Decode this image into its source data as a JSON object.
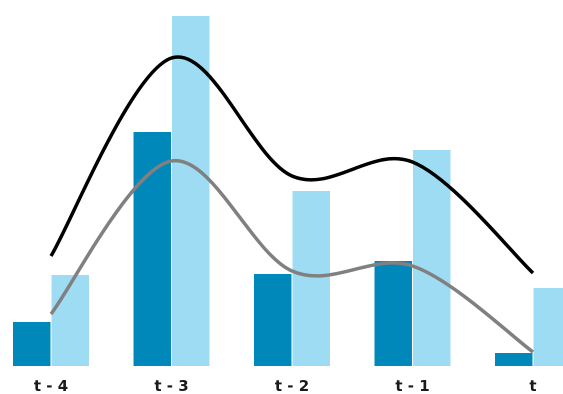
{
  "chart_data": {
    "type": "bar",
    "categories": [
      "t - 4",
      "t - 3",
      "t - 2",
      "t - 1",
      "t"
    ],
    "series": [
      {
        "values": [
          44,
          234,
          92,
          105,
          13
        ],
        "color": "#0088bb",
        "kind": "bar"
      },
      {
        "values": [
          91,
          350,
          175,
          216,
          78
        ],
        "color": "#9ddcf3",
        "kind": "bar"
      },
      {
        "values": [
          110,
          308,
          190,
          204,
          93
        ],
        "color": "#000000",
        "kind": "smooth-line"
      },
      {
        "values": [
          52,
          205,
          95,
          100,
          14
        ],
        "color": "#808080",
        "kind": "smooth-line"
      }
    ],
    "title": "",
    "xlabel": "",
    "ylabel": "",
    "ylim": [
      0,
      350
    ],
    "grid": false,
    "legend": "none"
  }
}
